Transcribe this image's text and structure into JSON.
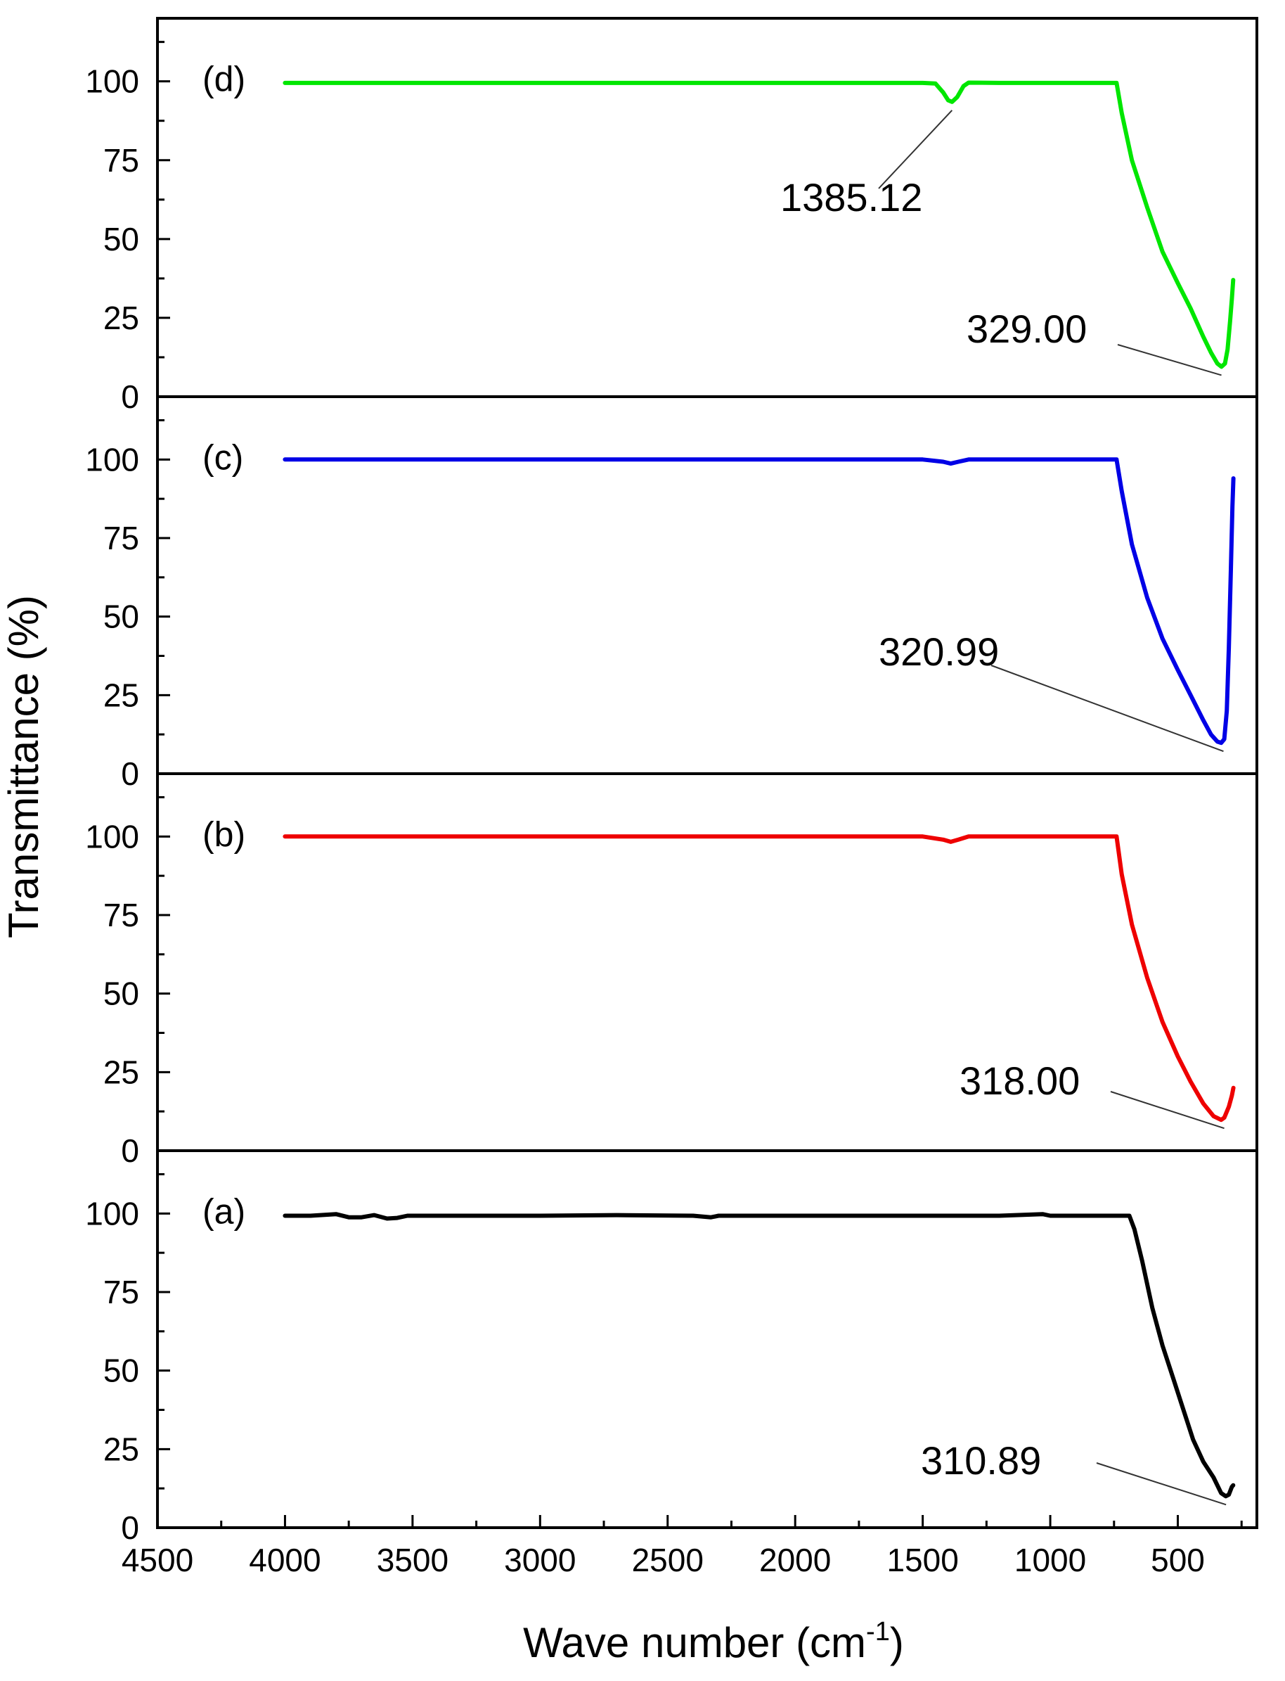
{
  "chart_data": {
    "type": "line",
    "xlabel": "Wave number (cm",
    "xlabel_sup": "-1",
    "xlabel_close": ")",
    "ylabel": "Transmittance (%)",
    "xlim": [
      4500,
      190
    ],
    "x_reversed": true,
    "x_ticks": [
      4500,
      4000,
      3500,
      3000,
      2500,
      2000,
      1500,
      1000,
      500
    ],
    "grid": false,
    "legend": "none",
    "panels": [
      {
        "name": "(d)",
        "label": "(d)",
        "color": "#00e600",
        "ylim": [
          0,
          120
        ],
        "y_ticks": [
          0,
          25,
          50,
          75,
          100
        ],
        "points": [
          [
            4000,
            99.5
          ],
          [
            3500,
            99.5
          ],
          [
            3000,
            99.5
          ],
          [
            2500,
            99.5
          ],
          [
            2000,
            99.5
          ],
          [
            1500,
            99.5
          ],
          [
            1450,
            99.3
          ],
          [
            1420,
            96.5
          ],
          [
            1400,
            94
          ],
          [
            1385,
            93.5
          ],
          [
            1365,
            95
          ],
          [
            1340,
            98.5
          ],
          [
            1320,
            99.6
          ],
          [
            1200,
            99.5
          ],
          [
            1000,
            99.5
          ],
          [
            800,
            99.5
          ],
          [
            740,
            99.5
          ],
          [
            720,
            90
          ],
          [
            680,
            75
          ],
          [
            620,
            60
          ],
          [
            560,
            46
          ],
          [
            500,
            36
          ],
          [
            450,
            28
          ],
          [
            400,
            19
          ],
          [
            370,
            14
          ],
          [
            345,
            10.5
          ],
          [
            329,
            9.5
          ],
          [
            315,
            10.5
          ],
          [
            305,
            15
          ],
          [
            295,
            24
          ],
          [
            288,
            31
          ],
          [
            283,
            37
          ]
        ],
        "annotations": [
          {
            "text": "1385.12",
            "x": 1385.12,
            "y": 93.5
          },
          {
            "text": "329.00",
            "x": 329.0,
            "y": 9.5
          }
        ]
      },
      {
        "name": "(c)",
        "label": "(c)",
        "color": "#0000e6",
        "ylim": [
          0,
          120
        ],
        "y_ticks": [
          0,
          25,
          50,
          75,
          100
        ],
        "points": [
          [
            4000,
            100
          ],
          [
            3500,
            100
          ],
          [
            3000,
            100
          ],
          [
            2500,
            100
          ],
          [
            2000,
            100
          ],
          [
            1500,
            100
          ],
          [
            1420,
            99.3
          ],
          [
            1390,
            98.7
          ],
          [
            1360,
            99.3
          ],
          [
            1320,
            100
          ],
          [
            1000,
            100
          ],
          [
            800,
            100
          ],
          [
            740,
            100
          ],
          [
            720,
            90
          ],
          [
            680,
            73
          ],
          [
            620,
            56
          ],
          [
            560,
            43
          ],
          [
            500,
            33
          ],
          [
            450,
            25
          ],
          [
            400,
            17
          ],
          [
            370,
            12.5
          ],
          [
            345,
            10.2
          ],
          [
            330,
            9.8
          ],
          [
            318,
            11
          ],
          [
            308,
            20
          ],
          [
            300,
            40
          ],
          [
            292,
            65
          ],
          [
            286,
            85
          ],
          [
            282,
            94
          ]
        ],
        "annotations": [
          {
            "text": "320.99",
            "x": 320.99,
            "y": 9.8
          }
        ]
      },
      {
        "name": "(b)",
        "label": "(b)",
        "color": "#ee0000",
        "ylim": [
          0,
          120
        ],
        "y_ticks": [
          0,
          25,
          50,
          75,
          100
        ],
        "points": [
          [
            4000,
            100
          ],
          [
            3500,
            100
          ],
          [
            3000,
            100
          ],
          [
            2500,
            100
          ],
          [
            2000,
            100
          ],
          [
            1500,
            100
          ],
          [
            1420,
            99
          ],
          [
            1390,
            98.3
          ],
          [
            1360,
            99
          ],
          [
            1320,
            100
          ],
          [
            1000,
            100
          ],
          [
            800,
            100
          ],
          [
            740,
            100
          ],
          [
            720,
            88
          ],
          [
            680,
            72
          ],
          [
            620,
            55
          ],
          [
            560,
            41
          ],
          [
            500,
            30
          ],
          [
            450,
            22
          ],
          [
            400,
            15
          ],
          [
            360,
            11
          ],
          [
            330,
            9.8
          ],
          [
            318,
            10.5
          ],
          [
            300,
            14
          ],
          [
            288,
            17.5
          ],
          [
            282,
            20
          ]
        ],
        "annotations": [
          {
            "text": "318.00",
            "x": 318.0,
            "y": 9.8
          }
        ]
      },
      {
        "name": "(a)",
        "label": "(a)",
        "color": "#000000",
        "ylim": [
          0,
          120
        ],
        "y_ticks": [
          0,
          25,
          50,
          75,
          100
        ],
        "points": [
          [
            4000,
            99.3
          ],
          [
            3900,
            99.3
          ],
          [
            3800,
            99.8
          ],
          [
            3750,
            98.8
          ],
          [
            3700,
            98.8
          ],
          [
            3650,
            99.5
          ],
          [
            3600,
            98.4
          ],
          [
            3560,
            98.6
          ],
          [
            3520,
            99.3
          ],
          [
            3000,
            99.3
          ],
          [
            2700,
            99.5
          ],
          [
            2400,
            99.3
          ],
          [
            2330,
            98.8
          ],
          [
            2300,
            99.3
          ],
          [
            2250,
            99.3
          ],
          [
            1500,
            99.3
          ],
          [
            1200,
            99.3
          ],
          [
            1030,
            99.8
          ],
          [
            1000,
            99.3
          ],
          [
            900,
            99.3
          ],
          [
            800,
            99.3
          ],
          [
            690,
            99.3
          ],
          [
            670,
            95
          ],
          [
            640,
            85
          ],
          [
            600,
            70
          ],
          [
            560,
            58
          ],
          [
            520,
            48
          ],
          [
            480,
            38
          ],
          [
            440,
            28
          ],
          [
            400,
            21
          ],
          [
            360,
            16
          ],
          [
            330,
            11
          ],
          [
            312,
            10
          ],
          [
            300,
            10.5
          ],
          [
            288,
            13
          ],
          [
            283,
            13.5
          ]
        ],
        "annotations": [
          {
            "text": "310.89",
            "x": 310.89,
            "y": 10
          }
        ]
      }
    ]
  }
}
